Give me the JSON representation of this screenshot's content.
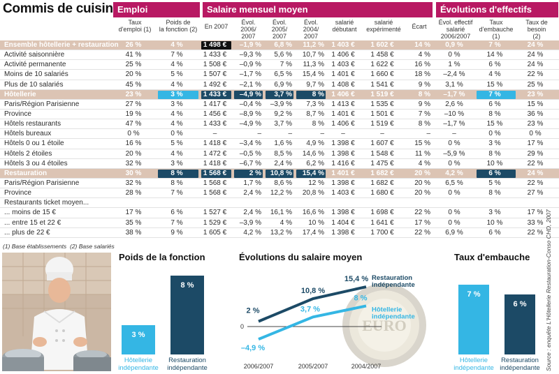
{
  "title": "Commis de cuisine",
  "groups": [
    "Emploi",
    "Salaire mensuel moyen",
    "Évolutions d'effectifs"
  ],
  "columns": [
    "Taux\nd'emploi (1)",
    "Poids de\nla fonction (2)",
    "En 2007",
    "Évol.\n2006/\n2007",
    "Évol.\n2005/\n2007",
    "Évol.\n2004/\n2007",
    "salarié\ndébutant",
    "salarié\nexpérimenté",
    "Écart",
    "Évol. effectif\nsalarié\n2006/2007",
    "Taux\nd'embauche\n(1)",
    "Taux de\nbesoin\n(2)"
  ],
  "rows": [
    {
      "label": "Ensemble hôtellerie + restauration",
      "type": "hl",
      "cells": [
        "26 %",
        "4 %",
        "1 498 €",
        "–1,9 %",
        "6,8 %",
        "11,2 %",
        "1 403 €",
        "1 602 €",
        "14 %",
        "0,9 %",
        "7 %",
        "24 %"
      ]
    },
    {
      "label": "Activité saisonnière",
      "cells": [
        "41 %",
        "7 %",
        "1 433 €",
        "–9,3 %",
        "5,6 %",
        "10,7 %",
        "1 406 €",
        "1 458 €",
        "4 %",
        "0 %",
        "14 %",
        "24 %"
      ]
    },
    {
      "label": "Activité permanente",
      "cells": [
        "25 %",
        "4 %",
        "1 508 €",
        "–0,9 %",
        "7 %",
        "11,3 %",
        "1 403 €",
        "1 622 €",
        "16 %",
        "1 %",
        "6 %",
        "24 %"
      ]
    },
    {
      "label": "Moins de 10 salariés",
      "cells": [
        "20 %",
        "5 %",
        "1 507 €",
        "–1,7 %",
        "6,5 %",
        "15,4 %",
        "1 401 €",
        "1 660 €",
        "18 %",
        "–2,4 %",
        "4 %",
        "22 %"
      ]
    },
    {
      "label": "Plus de 10 salariés",
      "cells": [
        "45 %",
        "4 %",
        "1 492 €",
        "–2,1 %",
        "6,9 %",
        "9,7 %",
        "1 408 €",
        "1 541 €",
        "9 %",
        "3,1 %",
        "15 %",
        "25 %"
      ]
    },
    {
      "label": "Hôtellerie",
      "type": "hl",
      "cells": [
        "23 %",
        "3 %",
        "1 433 €",
        "–4,9 %",
        "3,7 %",
        "8 %",
        "1 406 €",
        "1 519 €",
        "8 %",
        "–1,7 %",
        "7 %",
        "23 %"
      ]
    },
    {
      "label": "Paris/Région Parisienne",
      "cells": [
        "27 %",
        "3 %",
        "1 417 €",
        "–0,4 %",
        "–3,9 %",
        "7,3 %",
        "1 413 €",
        "1 535 €",
        "9 %",
        "2,6 %",
        "6 %",
        "15 %"
      ]
    },
    {
      "label": "Province",
      "cells": [
        "19 %",
        "4 %",
        "1 456 €",
        "–8,9 %",
        "9,2 %",
        "8,7 %",
        "1 401 €",
        "1 501 €",
        "7 %",
        "–10 %",
        "8 %",
        "36 %"
      ]
    },
    {
      "label": "Hôtels restaurants",
      "cells": [
        "47 %",
        "4 %",
        "1 433 €",
        "–4,9 %",
        "3,7 %",
        "8 %",
        "1 406 €",
        "1 519 €",
        "8 %",
        "–1,7 %",
        "15 %",
        "23 %"
      ]
    },
    {
      "label": "Hôtels bureaux",
      "cells": [
        "0 %",
        "0 %",
        "–",
        "–",
        "–",
        "–",
        "–",
        "–",
        "–",
        "–",
        "0 %",
        "0 %"
      ]
    },
    {
      "label": "Hôtels 0 ou 1 étoile",
      "cells": [
        "16 %",
        "5 %",
        "1 418 €",
        "–3,4 %",
        "1,6 %",
        "4,9 %",
        "1 398 €",
        "1 607 €",
        "15 %",
        "0 %",
        "3 %",
        "17 %"
      ]
    },
    {
      "label": "Hôtels 2 étoiles",
      "cells": [
        "20 %",
        "4 %",
        "1 472 €",
        "–0,5 %",
        "8,5 %",
        "14,6 %",
        "1 398 €",
        "1 548 €",
        "11 %",
        "–5,9 %",
        "8 %",
        "29 %"
      ]
    },
    {
      "label": "Hôtels 3 ou 4 étoiles",
      "cells": [
        "32 %",
        "3 %",
        "1 418 €",
        "–6,7 %",
        "2,4 %",
        "6,2 %",
        "1 416 €",
        "1 475 €",
        "4 %",
        "0 %",
        "10 %",
        "22 %"
      ]
    },
    {
      "label": "Restauration",
      "type": "hl",
      "cells": [
        "30 %",
        "8 %",
        "1 568 €",
        "2 %",
        "10,8 %",
        "15,4 %",
        "1 401 €",
        "1 682 €",
        "20 %",
        "4,2 %",
        "6 %",
        "24 %"
      ]
    },
    {
      "label": "Paris/Région Parisienne",
      "cells": [
        "32 %",
        "8 %",
        "1 568 €",
        "1,7 %",
        "8,6 %",
        "12 %",
        "1 398 €",
        "1 682 €",
        "20 %",
        "6,5 %",
        "5 %",
        "22 %"
      ]
    },
    {
      "label": "Province",
      "cells": [
        "28 %",
        "7 %",
        "1 568 €",
        "2,4 %",
        "12,2 %",
        "20,8 %",
        "1 403 €",
        "1 680 €",
        "20 %",
        "0 %",
        "8 %",
        "27 %"
      ]
    },
    {
      "label": "Restaurants ticket moyen...",
      "cells": [
        "",
        "",
        "",
        "",
        "",
        "",
        "",
        "",
        "",
        "",
        "",
        ""
      ]
    },
    {
      "label": "... moins de 15 €",
      "cells": [
        "17 %",
        "6 %",
        "1 527 €",
        "2,4 %",
        "16,1 %",
        "16,6 %",
        "1 398 €",
        "1 698 €",
        "22 %",
        "0 %",
        "3 %",
        "17 %"
      ]
    },
    {
      "label": "... entre 15 et 22 €",
      "cells": [
        "35 %",
        "7 %",
        "1 529 €",
        "–3,9 %",
        "4 %",
        "10 %",
        "1 404 €",
        "1 641 €",
        "17 %",
        "0 %",
        "10 %",
        "33 %"
      ]
    },
    {
      "label": "... plus de 22 €",
      "cells": [
        "38 %",
        "9 %",
        "1 605 €",
        "4,2 %",
        "13,2 %",
        "17,4 %",
        "1 398 €",
        "1 700 €",
        "22 %",
        "6,9 %",
        "6 %",
        "22 %"
      ]
    }
  ],
  "notes": [
    "(1) Base établissements",
    "(2) Base salariés"
  ],
  "source": "Source : enquête L'Hôtellerie Restauration-Conso CHD, 2007",
  "colors": {
    "magenta": "#b81963",
    "tan": "#dcc4b4",
    "dark_blue": "#1c4a66",
    "light_blue": "#34b6e4",
    "black": "#111111"
  },
  "chart_data": [
    {
      "type": "bar",
      "title": "Poids de la fonction",
      "categories": [
        "Hôtellerie\nindépendante",
        "Restauration\nindépendante"
      ],
      "values": [
        3,
        8
      ],
      "value_labels": [
        "3 %",
        "8 %"
      ],
      "ylim": [
        0,
        9
      ]
    },
    {
      "type": "line",
      "title": "Évolutions du salaire moyen",
      "x": [
        "2006/2007",
        "2005/2007",
        "2004/2007"
      ],
      "zero_label": "0",
      "series": [
        {
          "name": "Restauration\nindépendante",
          "values": [
            2,
            10.8,
            15.4
          ],
          "labels": [
            "2 %",
            "10,8 %",
            "15,4 %"
          ]
        },
        {
          "name": "Hôtellerie\nindépendante",
          "values": [
            -4.9,
            3.7,
            8
          ],
          "labels": [
            "–4,9 %",
            "3,7 %",
            "8 %"
          ]
        }
      ],
      "ylim": [
        -6,
        17
      ]
    },
    {
      "type": "bar",
      "title": "Taux d'embauche",
      "categories": [
        "Hôtellerie\nindépendante",
        "Restauration\nindépendante"
      ],
      "values": [
        7,
        6
      ],
      "value_labels": [
        "7 %",
        "6 %"
      ],
      "ylim": [
        0,
        8
      ]
    }
  ]
}
